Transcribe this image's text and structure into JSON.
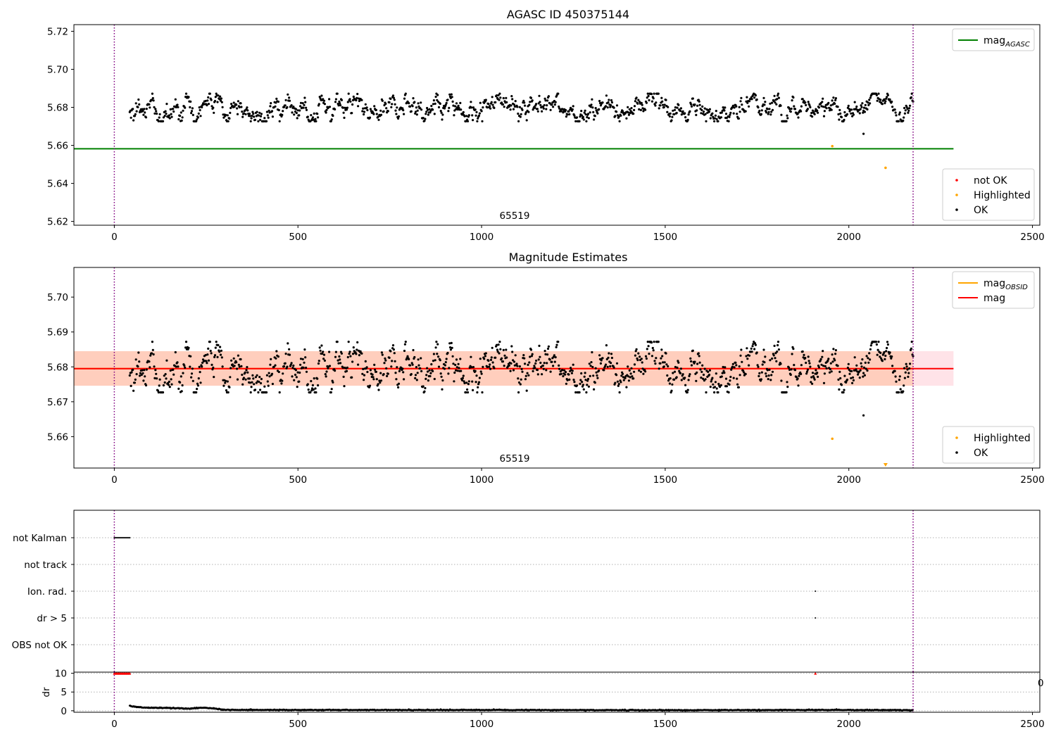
{
  "colors": {
    "ok": "#000000",
    "not_ok": "#ff0000",
    "highlighted": "#ffa500",
    "mag_agasc_line": "#008000",
    "mag_line": "#ff0000",
    "mag_obsid_line": "#ffa500",
    "band_fill": "#ffb38a",
    "band_fill_outer": "#ffc0cb",
    "obs_boundary": "#800080",
    "grid": "#b0b0b0"
  },
  "chart_data": [
    {
      "id": "top",
      "type": "scatter",
      "title": "AGASC ID 450375144",
      "xlabel": "",
      "ylabel": "",
      "xlim": [
        -110,
        2520
      ],
      "ylim": [
        5.618,
        5.7235
      ],
      "x_ticks": [
        0,
        500,
        1000,
        1500,
        2000,
        2500
      ],
      "x_tick_labels": [
        "0",
        "500",
        "1000",
        "1500",
        "2000",
        "2500"
      ],
      "y_ticks": [
        5.62,
        5.64,
        5.66,
        5.68,
        5.7,
        5.72
      ],
      "y_tick_labels": [
        "5.62",
        "5.64",
        "5.66",
        "5.68",
        "5.70",
        "5.72"
      ],
      "obsid_label": "65519",
      "obsid_label_x": 1090,
      "obs_boundaries": [
        0,
        2175
      ],
      "hlines": [
        {
          "name": "mag_AGASC",
          "y": 5.6582,
          "x_range": [
            -110,
            2285
          ],
          "color": "#008000"
        }
      ],
      "ok_points": {
        "x_range": [
          42,
          2175
        ],
        "count": 1250,
        "mean": 5.6795,
        "spread": 0.005,
        "outliers": [
          {
            "x": 2040,
            "y": 5.6661
          }
        ]
      },
      "highlighted_points": [
        {
          "x": 1955,
          "y": 5.6596
        },
        {
          "x": 2100,
          "y": 5.6482
        }
      ],
      "legends": [
        {
          "position": "upper-right",
          "entries": [
            {
              "kind": "line",
              "color": "#008000",
              "label": "mag",
              "sub": "AGASC"
            }
          ]
        },
        {
          "position": "lower-right",
          "entries": [
            {
              "kind": "dot",
              "color": "#ff0000",
              "label": "not OK"
            },
            {
              "kind": "dot",
              "color": "#ffa500",
              "label": "Highlighted"
            },
            {
              "kind": "dot",
              "color": "#000000",
              "label": "OK"
            }
          ]
        }
      ]
    },
    {
      "id": "middle",
      "type": "scatter",
      "title": "Magnitude Estimates",
      "xlabel": "",
      "ylabel": "",
      "xlim": [
        -110,
        2520
      ],
      "ylim": [
        5.651,
        5.7085
      ],
      "x_ticks": [
        0,
        500,
        1000,
        1500,
        2000,
        2500
      ],
      "x_tick_labels": [
        "0",
        "500",
        "1000",
        "1500",
        "2000",
        "2500"
      ],
      "y_ticks": [
        5.66,
        5.67,
        5.68,
        5.69,
        5.7
      ],
      "y_tick_labels": [
        "5.66",
        "5.67",
        "5.68",
        "5.69",
        "5.70"
      ],
      "obsid_label": "65519",
      "obsid_label_x": 1090,
      "obs_boundaries": [
        0,
        2175
      ],
      "bands": [
        {
          "y_range": [
            5.6746,
            5.6845
          ],
          "x_range": [
            -110,
            2285
          ],
          "color": "#ffc0cb",
          "opacity": 0.45
        },
        {
          "y_range": [
            5.6746,
            5.6845
          ],
          "x_range": [
            -110,
            2175
          ],
          "color": "#ffb38a",
          "opacity": 0.45
        }
      ],
      "hlines": [
        {
          "name": "mag_OBSID",
          "y": 5.6795,
          "x_range": [
            -110,
            2175
          ],
          "color": "#ffa500"
        },
        {
          "name": "mag",
          "y": 5.6795,
          "x_range": [
            -110,
            2285
          ],
          "color": "#ff0000"
        }
      ],
      "ok_points": {
        "x_range": [
          42,
          2175
        ],
        "count": 1250,
        "mean": 5.6795,
        "spread": 0.005,
        "outliers": [
          {
            "x": 2040,
            "y": 5.6661
          }
        ]
      },
      "highlighted_points": [
        {
          "x": 1955,
          "y": 5.6594
        }
      ],
      "highlighted_offscale": [
        {
          "x": 2100,
          "marker": "triangle-down"
        }
      ],
      "legends": [
        {
          "position": "upper-right",
          "entries": [
            {
              "kind": "line",
              "color": "#ffa500",
              "label": "mag",
              "sub": "OBSID"
            },
            {
              "kind": "line",
              "color": "#ff0000",
              "label": "mag",
              "sub": ""
            }
          ]
        },
        {
          "position": "lower-right",
          "entries": [
            {
              "kind": "dot",
              "color": "#ffa500",
              "label": "Highlighted"
            },
            {
              "kind": "dot",
              "color": "#000000",
              "label": "OK"
            }
          ]
        }
      ]
    },
    {
      "id": "flags",
      "type": "scatter",
      "title": "",
      "xlabel": "",
      "ylabel": "",
      "xlim": [
        -110,
        2520
      ],
      "obs_boundaries": [
        0,
        2175
      ],
      "categories": [
        "not Kalman",
        "not track",
        "Ion. rad.",
        "dr > 5",
        "OBS not OK"
      ],
      "flag_segments": [
        {
          "category": "not Kalman",
          "x_start": 0,
          "x_end": 42
        },
        {
          "category": "Ion. rad.",
          "x_start": 1909,
          "x_end": 1909
        },
        {
          "category": "dr > 5",
          "x_start": 1909,
          "x_end": 1909
        }
      ]
    },
    {
      "id": "dr",
      "type": "scatter",
      "title": "",
      "xlabel": "",
      "ylabel": "dr",
      "xlim": [
        -110,
        2520
      ],
      "ylim": [
        -0.4,
        10.3
      ],
      "x_ticks": [
        0,
        500,
        1000,
        1500,
        2000,
        2500
      ],
      "x_tick_labels": [
        "0",
        "500",
        "1000",
        "1500",
        "2000",
        "2500"
      ],
      "y_ticks": [
        0,
        5,
        10
      ],
      "y_tick_labels": [
        "0",
        "5",
        "10"
      ],
      "obs_boundaries": [
        0,
        2175
      ],
      "clipped_markers": [
        {
          "x_start": 0,
          "x_end": 42,
          "y": 10
        },
        {
          "x_start": 1909,
          "x_end": 1909,
          "y": 10
        }
      ],
      "dr_profile": [
        [
          42,
          1.3
        ],
        [
          55,
          1.1
        ],
        [
          90,
          0.8
        ],
        [
          150,
          0.75
        ],
        [
          200,
          0.55
        ],
        [
          240,
          0.8
        ],
        [
          270,
          0.6
        ],
        [
          300,
          0.25
        ],
        [
          500,
          0.2
        ],
        [
          1000,
          0.2
        ],
        [
          1500,
          0.15
        ],
        [
          2000,
          0.2
        ],
        [
          2175,
          0.15
        ]
      ],
      "stray_tick_label": "0"
    }
  ]
}
